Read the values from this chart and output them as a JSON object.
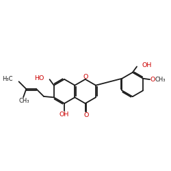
{
  "bg_color": "#ffffff",
  "bond_color": "#1a1a1a",
  "heteroatom_color": "#cc0000",
  "lw": 1.3,
  "fs_main": 6.8,
  "fs_small": 6.0,
  "figsize": [
    2.5,
    2.5
  ],
  "dpi": 100,
  "r": 0.62,
  "Acx": 4.05,
  "Acy": 5.1,
  "xlim": [
    1.0,
    9.5
  ],
  "ylim": [
    3.0,
    7.8
  ]
}
